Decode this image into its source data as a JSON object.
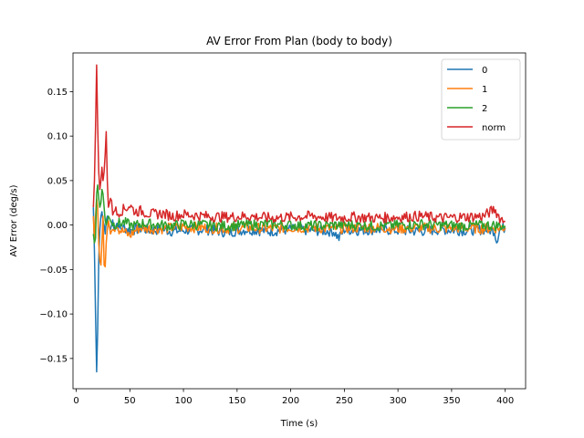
{
  "chart_data": {
    "type": "line",
    "title": "AV Error From Plan (body to body)",
    "xlabel": "Time (s)",
    "ylabel": "AV Error (deg/s)",
    "xlim": [
      -3,
      419
    ],
    "ylim": [
      -0.184,
      0.1935
    ],
    "x_ticks": [
      0,
      50,
      100,
      150,
      200,
      250,
      300,
      350,
      400
    ],
    "x_tick_labels": [
      "0",
      "50",
      "100",
      "150",
      "200",
      "250",
      "300",
      "350",
      "400"
    ],
    "y_ticks": [
      -0.15,
      -0.1,
      -0.05,
      0.0,
      0.05,
      0.1,
      0.15
    ],
    "y_tick_labels": [
      "−0.15",
      "−0.10",
      "−0.05",
      "0.00",
      "0.05",
      "0.10",
      "0.15"
    ],
    "grid": false,
    "legend_position": "top-right",
    "series": [
      {
        "name": "0",
        "color": "#1f77b4",
        "x": [
          16,
          17,
          18,
          19,
          20,
          21,
          22,
          23,
          24,
          25,
          26,
          27,
          28,
          29,
          30,
          32,
          34,
          36,
          38,
          40,
          45,
          50,
          55,
          60,
          70,
          80,
          90,
          100,
          120,
          140,
          160,
          180,
          200,
          220,
          240,
          245,
          250,
          260,
          280,
          300,
          320,
          340,
          360,
          380,
          390,
          392,
          395,
          400
        ],
        "y": [
          0.02,
          -0.03,
          -0.1,
          -0.165,
          -0.12,
          -0.04,
          -0.005,
          0.01,
          0.015,
          0.005,
          0.0,
          -0.01,
          0.005,
          0.01,
          0.0,
          -0.005,
          0.005,
          -0.003,
          0.002,
          -0.004,
          -0.003,
          -0.006,
          -0.005,
          -0.004,
          -0.006,
          -0.005,
          -0.007,
          -0.006,
          -0.005,
          -0.008,
          -0.005,
          -0.007,
          -0.005,
          -0.006,
          -0.007,
          -0.015,
          -0.005,
          -0.006,
          -0.005,
          -0.006,
          -0.007,
          -0.005,
          -0.006,
          -0.005,
          -0.006,
          -0.018,
          -0.004,
          -0.003
        ]
      },
      {
        "name": "1",
        "color": "#ff7f0e",
        "x": [
          16,
          17,
          18,
          19,
          20,
          21,
          22,
          23,
          24,
          25,
          26,
          27,
          28,
          29,
          30,
          32,
          34,
          36,
          38,
          40,
          45,
          50,
          55,
          60,
          70,
          80,
          90,
          100,
          120,
          140,
          160,
          180,
          200,
          220,
          240,
          260,
          280,
          300,
          320,
          340,
          360,
          380,
          400
        ],
        "y": [
          0.01,
          -0.02,
          0.01,
          0.03,
          0.02,
          -0.02,
          -0.04,
          -0.045,
          -0.02,
          0.01,
          -0.045,
          -0.047,
          -0.02,
          -0.005,
          0.005,
          -0.01,
          0.0,
          -0.003,
          0.002,
          -0.005,
          -0.008,
          -0.012,
          -0.006,
          -0.003,
          -0.004,
          -0.004,
          -0.003,
          -0.002,
          -0.003,
          -0.004,
          -0.003,
          -0.004,
          -0.003,
          -0.003,
          -0.004,
          -0.003,
          -0.003,
          -0.004,
          -0.003,
          -0.004,
          -0.003,
          -0.004,
          -0.003
        ]
      },
      {
        "name": "2",
        "color": "#2ca02c",
        "x": [
          16,
          17,
          18,
          19,
          20,
          21,
          22,
          23,
          24,
          25,
          26,
          27,
          28,
          29,
          30,
          32,
          34,
          36,
          38,
          40,
          45,
          50,
          55,
          60,
          70,
          80,
          90,
          100,
          120,
          140,
          160,
          180,
          200,
          220,
          240,
          260,
          280,
          300,
          320,
          340,
          360,
          380,
          400
        ],
        "y": [
          -0.01,
          -0.02,
          -0.015,
          0.035,
          0.045,
          0.03,
          0.02,
          0.025,
          0.04,
          0.035,
          0.02,
          0.005,
          0.0,
          0.005,
          0.01,
          0.005,
          0.002,
          0.0,
          0.003,
          0.002,
          0.003,
          0.0,
          -0.001,
          0.002,
          0.001,
          0.0,
          -0.001,
          0.001,
          0.0,
          -0.001,
          0.0,
          0.001,
          0.0,
          -0.001,
          0.0,
          0.0,
          -0.001,
          0.0,
          0.001,
          0.0,
          -0.001,
          0.0,
          -0.001
        ]
      },
      {
        "name": "norm",
        "color": "#d62728",
        "x": [
          16,
          17,
          18,
          19,
          20,
          21,
          22,
          23,
          24,
          25,
          26,
          27,
          28,
          29,
          30,
          32,
          34,
          36,
          38,
          40,
          45,
          50,
          55,
          60,
          70,
          80,
          90,
          100,
          120,
          140,
          160,
          180,
          200,
          220,
          240,
          260,
          280,
          300,
          320,
          340,
          360,
          380,
          390,
          395,
          400
        ],
        "y": [
          0.02,
          0.05,
          0.11,
          0.18,
          0.115,
          0.06,
          0.04,
          0.05,
          0.065,
          0.05,
          0.06,
          0.08,
          0.105,
          0.05,
          0.02,
          0.03,
          0.015,
          0.02,
          0.012,
          0.015,
          0.018,
          0.022,
          0.015,
          0.016,
          0.012,
          0.013,
          0.01,
          0.012,
          0.01,
          0.009,
          0.01,
          0.008,
          0.009,
          0.01,
          0.008,
          0.009,
          0.008,
          0.009,
          0.01,
          0.008,
          0.009,
          0.01,
          0.018,
          0.008,
          0.004
        ]
      }
    ]
  }
}
